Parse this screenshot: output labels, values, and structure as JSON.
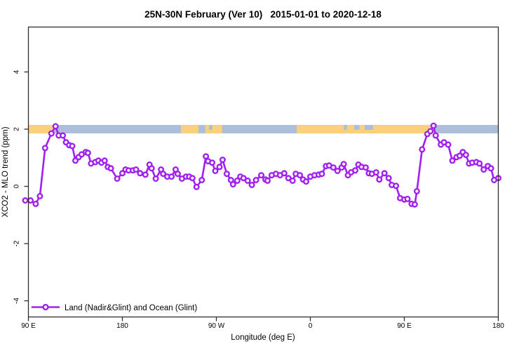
{
  "chart_data": {
    "type": "line",
    "title": "25N-30N February (Ver 10)   2015-01-01 to 2020-12-18",
    "xlabel": "Longitude (deg E)",
    "ylabel": "XCO2 - MLO trend (ppm)",
    "xlim": [
      90,
      540
    ],
    "ylim": [
      -4.6,
      5.6
    ],
    "grid": false,
    "x_ticks": {
      "values": [
        90,
        180,
        270,
        360,
        450,
        540
      ],
      "labels": [
        "90 E",
        "180",
        "90 W",
        "0",
        "90 E",
        "180"
      ]
    },
    "y_ticks": {
      "values": [
        -4,
        -2,
        0,
        2,
        4
      ],
      "labels": [
        "-4",
        "-2",
        "0",
        "2",
        "4"
      ]
    },
    "legend": {
      "label": "Land (Nadir&Glint) and Ocean (Glint)",
      "position": "bottom-left"
    },
    "colors": {
      "line": "#A020F0",
      "marker_fill": "#ffffff",
      "ocean": "#ABBFDB",
      "land": "#FAD07E",
      "axis": "#2e2e2e"
    },
    "map_strip": {
      "y_value": 2,
      "note": "world map band at y=2 showing land/ocean along the 25N-30N strip",
      "land_segments": [
        [
          90,
          114
        ],
        [
          236,
          253
        ],
        [
          259.5,
          275.5
        ],
        [
          347,
          479
        ]
      ],
      "ocean_patches": [
        [
          263,
          266
        ],
        [
          392,
          395
        ],
        [
          402,
          407
        ],
        [
          412,
          420
        ]
      ]
    },
    "series": [
      {
        "name": "Land (Nadir&Glint) and Ocean (Glint)",
        "points": [
          [
            87,
            -0.49
          ],
          [
            92,
            -0.49
          ],
          [
            97,
            -0.61
          ],
          [
            101,
            -0.34
          ],
          [
            106,
            1.34
          ],
          [
            112,
            1.85
          ],
          [
            116,
            2.1
          ],
          [
            119,
            1.78
          ],
          [
            123,
            1.78
          ],
          [
            126,
            1.54
          ],
          [
            129,
            1.44
          ],
          [
            132,
            1.41
          ],
          [
            135,
            0.9
          ],
          [
            138,
            1.02
          ],
          [
            141,
            1.12
          ],
          [
            145,
            1.2
          ],
          [
            147,
            1.17
          ],
          [
            150,
            0.8
          ],
          [
            154,
            0.85
          ],
          [
            157,
            0.9
          ],
          [
            160,
            0.83
          ],
          [
            163,
            0.9
          ],
          [
            166,
            0.68
          ],
          [
            169,
            0.63
          ],
          [
            175,
            0.27
          ],
          [
            180,
            0.46
          ],
          [
            183,
            0.59
          ],
          [
            186,
            0.56
          ],
          [
            190,
            0.56
          ],
          [
            193,
            0.59
          ],
          [
            197,
            0.46
          ],
          [
            202,
            0.41
          ],
          [
            206,
            0.76
          ],
          [
            208,
            0.63
          ],
          [
            212,
            0.27
          ],
          [
            217,
            0.59
          ],
          [
            219,
            0.44
          ],
          [
            223,
            0.34
          ],
          [
            227,
            0.34
          ],
          [
            231,
            0.59
          ],
          [
            233,
            0.44
          ],
          [
            237,
            0.27
          ],
          [
            241,
            0.34
          ],
          [
            244,
            0.34
          ],
          [
            247,
            0.29
          ],
          [
            251,
            -0.02
          ],
          [
            256,
            0.22
          ],
          [
            260,
            1.05
          ],
          [
            262,
            0.88
          ],
          [
            266,
            0.83
          ],
          [
            269,
            0.54
          ],
          [
            273,
            0.68
          ],
          [
            276,
            0.93
          ],
          [
            280,
            0.44
          ],
          [
            284,
            0.22
          ],
          [
            286,
            0.07
          ],
          [
            290,
            0.2
          ],
          [
            293,
            0.34
          ],
          [
            296,
            0.29
          ],
          [
            300,
            0.2
          ],
          [
            304,
            0.05
          ],
          [
            308,
            0.22
          ],
          [
            313,
            0.39
          ],
          [
            317,
            0.24
          ],
          [
            319,
            0.2
          ],
          [
            323,
            0.39
          ],
          [
            327,
            0.44
          ],
          [
            331,
            0.39
          ],
          [
            335,
            0.46
          ],
          [
            339,
            0.29
          ],
          [
            343,
            0.2
          ],
          [
            346,
            0.44
          ],
          [
            350,
            0.39
          ],
          [
            353,
            0.24
          ],
          [
            356,
            0.17
          ],
          [
            360,
            0.34
          ],
          [
            364,
            0.39
          ],
          [
            368,
            0.41
          ],
          [
            371,
            0.44
          ],
          [
            375,
            0.71
          ],
          [
            378,
            0.73
          ],
          [
            382,
            0.66
          ],
          [
            386,
            0.54
          ],
          [
            390,
            0.66
          ],
          [
            392,
            0.78
          ],
          [
            396,
            0.39
          ],
          [
            399,
            0.49
          ],
          [
            403,
            0.56
          ],
          [
            406,
            0.76
          ],
          [
            409,
            0.68
          ],
          [
            413,
            0.66
          ],
          [
            416,
            0.46
          ],
          [
            419,
            0.44
          ],
          [
            423,
            0.49
          ],
          [
            426,
            0.24
          ],
          [
            431,
            0.46
          ],
          [
            435,
            0.29
          ],
          [
            438,
            0.05
          ],
          [
            442,
            0.02
          ],
          [
            446,
            -0.41
          ],
          [
            450,
            -0.46
          ],
          [
            453,
            -0.44
          ],
          [
            457,
            -0.61
          ],
          [
            460,
            -0.63
          ],
          [
            462,
            -0.17
          ],
          [
            467,
            1.29
          ],
          [
            472,
            1.83
          ],
          [
            475,
            1.93
          ],
          [
            478,
            2.12
          ],
          [
            480,
            1.78
          ],
          [
            485,
            1.46
          ],
          [
            488,
            1.54
          ],
          [
            492,
            1.46
          ],
          [
            496,
            0.9
          ],
          [
            500,
            1.02
          ],
          [
            503,
            1.07
          ],
          [
            506,
            1.2
          ],
          [
            509,
            1.1
          ],
          [
            512,
            0.8
          ],
          [
            515,
            0.83
          ],
          [
            519,
            0.85
          ],
          [
            522,
            0.8
          ],
          [
            526,
            0.59
          ],
          [
            530,
            0.71
          ],
          [
            533,
            0.63
          ],
          [
            536,
            0.22
          ],
          [
            540,
            0.29
          ]
        ]
      }
    ]
  }
}
